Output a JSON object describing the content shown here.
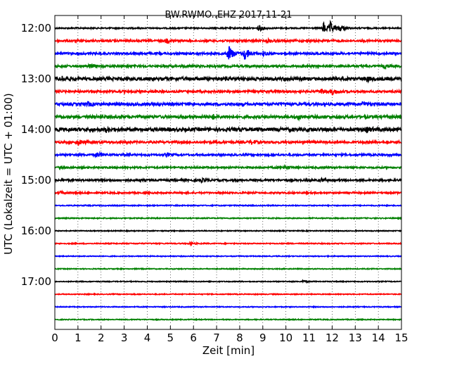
{
  "chart_data": {
    "type": "line",
    "title": "BW.RWMO..EHZ 2017-11-21",
    "xlabel": "Zeit  [min]",
    "ylabel": "UTC (Lokalzeit = UTC + 01:00)",
    "xlim": [
      0,
      15
    ],
    "x_ticks": [
      "0",
      "1",
      "2",
      "3",
      "4",
      "5",
      "6",
      "7",
      "8",
      "9",
      "10",
      "11",
      "12",
      "13",
      "14",
      "15"
    ],
    "y_ticks": [
      "12:00",
      "13:00",
      "14:00",
      "15:00",
      "16:00",
      "17:00"
    ],
    "grid": "vertical dotted",
    "trace_interval_minutes": 15,
    "traces": [
      {
        "start": "12:00",
        "color": "#000000",
        "amplitude": 0.9,
        "events": [
          {
            "t": 8.8,
            "amp": 5
          },
          {
            "t": 11.6,
            "amp": 9
          },
          {
            "t": 11.9,
            "amp": 8
          },
          {
            "t": 12.3,
            "amp": 5
          }
        ]
      },
      {
        "start": "12:15",
        "color": "#ff0000",
        "amplitude": 1.4,
        "events": [
          {
            "t": 4.8,
            "amp": 3
          },
          {
            "t": 9.2,
            "amp": 2.5
          }
        ]
      },
      {
        "start": "12:30",
        "color": "#0000ff",
        "amplitude": 1.4,
        "events": [
          {
            "t": 7.5,
            "amp": 14
          },
          {
            "t": 8.2,
            "amp": 11
          },
          {
            "t": 9.0,
            "amp": 3
          }
        ]
      },
      {
        "start": "12:45",
        "color": "#008000",
        "amplitude": 1.5,
        "events": [
          {
            "t": 1.5,
            "amp": 2.5
          },
          {
            "t": 14.2,
            "amp": 2.5
          }
        ]
      },
      {
        "start": "13:00",
        "color": "#000000",
        "amplitude": 2.2,
        "events": [
          {
            "t": 0.3,
            "amp": 3
          },
          {
            "t": 13.5,
            "amp": 3
          }
        ]
      },
      {
        "start": "13:15",
        "color": "#ff0000",
        "amplitude": 1.5,
        "events": [
          {
            "t": 11.5,
            "amp": 4
          },
          {
            "t": 12.0,
            "amp": 4
          }
        ]
      },
      {
        "start": "13:30",
        "color": "#0000ff",
        "amplitude": 1.9,
        "events": [
          {
            "t": 1.4,
            "amp": 3
          },
          {
            "t": 13.3,
            "amp": 3
          }
        ]
      },
      {
        "start": "13:45",
        "color": "#008000",
        "amplitude": 2.0,
        "events": [
          {
            "t": 6.8,
            "amp": 3
          },
          {
            "t": 10.5,
            "amp": 3
          }
        ]
      },
      {
        "start": "14:00",
        "color": "#000000",
        "amplitude": 2.4,
        "events": [
          {
            "t": 2.2,
            "amp": 3
          },
          {
            "t": 13.5,
            "amp": 3
          }
        ]
      },
      {
        "start": "14:15",
        "color": "#ff0000",
        "amplitude": 1.6,
        "events": [
          {
            "t": 1.0,
            "amp": 4
          },
          {
            "t": 8.5,
            "amp": 3
          }
        ]
      },
      {
        "start": "14:30",
        "color": "#0000ff",
        "amplitude": 1.3,
        "events": [
          {
            "t": 1.8,
            "amp": 4
          },
          {
            "t": 4.8,
            "amp": 3
          }
        ]
      },
      {
        "start": "14:45",
        "color": "#008000",
        "amplitude": 1.2,
        "events": [
          {
            "t": 9.9,
            "amp": 3.5
          }
        ]
      },
      {
        "start": "15:00",
        "color": "#000000",
        "amplitude": 1.4,
        "events": [
          {
            "t": 6.3,
            "amp": 2.5
          },
          {
            "t": 11.5,
            "amp": 2.5
          }
        ]
      },
      {
        "start": "15:15",
        "color": "#ff0000",
        "amplitude": 1.1,
        "events": [
          {
            "t": 0.2,
            "amp": 2
          }
        ]
      },
      {
        "start": "15:30",
        "color": "#0000ff",
        "amplitude": 0.7,
        "events": []
      },
      {
        "start": "15:45",
        "color": "#008000",
        "amplitude": 0.7,
        "events": []
      },
      {
        "start": "16:00",
        "color": "#000000",
        "amplitude": 0.6,
        "events": []
      },
      {
        "start": "16:15",
        "color": "#ff0000",
        "amplitude": 0.7,
        "events": [
          {
            "t": 5.8,
            "amp": 1.8
          }
        ]
      },
      {
        "start": "16:30",
        "color": "#0000ff",
        "amplitude": 0.6,
        "events": []
      },
      {
        "start": "16:45",
        "color": "#008000",
        "amplitude": 0.6,
        "events": []
      },
      {
        "start": "17:00",
        "color": "#000000",
        "amplitude": 0.6,
        "events": [
          {
            "t": 10.7,
            "amp": 1.5
          }
        ]
      },
      {
        "start": "17:15",
        "color": "#ff0000",
        "amplitude": 0.6,
        "events": []
      },
      {
        "start": "17:30",
        "color": "#0000ff",
        "amplitude": 0.6,
        "events": []
      },
      {
        "start": "17:45",
        "color": "#008000",
        "amplitude": 0.6,
        "events": []
      }
    ]
  }
}
